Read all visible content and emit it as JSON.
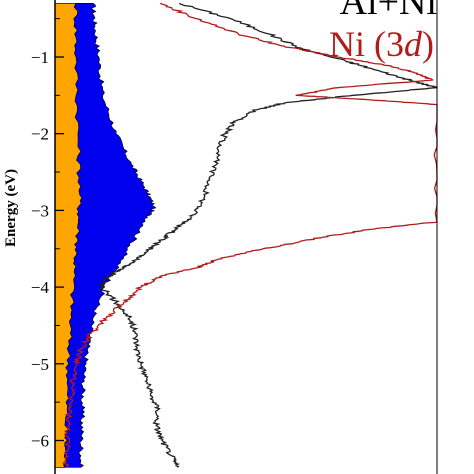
{
  "chart_data": {
    "type": "line",
    "title": "",
    "ylabel": "Energy (eV)",
    "xlabel": "",
    "ylim": [
      -6.35,
      -0.3
    ],
    "yticks": [
      -1,
      -2,
      -3,
      -4,
      -5,
      -6
    ],
    "ytick_labels": [
      "−1",
      "−2",
      "−3",
      "−4",
      "−5",
      "−6"
    ],
    "xlim": [
      0,
      10
    ],
    "grid": false,
    "legend": [
      {
        "text": "Al+Ni",
        "color": "#000000"
      },
      {
        "text": "Ni (3d)",
        "prefix": "Ni (3",
        "italic": "d",
        "suffix": ")",
        "color": "#b31b1b"
      }
    ],
    "series": [
      {
        "name": "Al+Ni",
        "style": "line",
        "color": "#222222",
        "points": [
          [
            -0.3,
            3.25
          ],
          [
            -0.5,
            4.6
          ],
          [
            -0.7,
            5.6
          ],
          [
            -0.9,
            6.5
          ],
          [
            -1.05,
            7.6
          ],
          [
            -1.2,
            8.6
          ],
          [
            -1.32,
            9.4
          ],
          [
            -1.4,
            10
          ],
          [
            -1.5,
            7.8
          ],
          [
            -1.6,
            6.0
          ],
          [
            -1.7,
            5.2
          ],
          [
            -1.85,
            4.7
          ],
          [
            -2.0,
            4.45
          ],
          [
            -2.3,
            4.25
          ],
          [
            -2.6,
            4.05
          ],
          [
            -2.9,
            3.85
          ],
          [
            -3.1,
            3.55
          ],
          [
            -3.25,
            3.15
          ],
          [
            -3.4,
            2.75
          ],
          [
            -3.55,
            2.35
          ],
          [
            -3.7,
            1.95
          ],
          [
            -3.8,
            1.6
          ],
          [
            -3.9,
            1.3
          ],
          [
            -4.0,
            1.25
          ],
          [
            -4.2,
            1.6
          ],
          [
            -4.4,
            1.95
          ],
          [
            -4.6,
            2.1
          ],
          [
            -4.8,
            2.15
          ],
          [
            -5.0,
            2.25
          ],
          [
            -5.2,
            2.4
          ],
          [
            -5.4,
            2.5
          ],
          [
            -5.6,
            2.7
          ],
          [
            -5.8,
            2.65
          ],
          [
            -6.0,
            2.8
          ],
          [
            -6.2,
            3.05
          ],
          [
            -6.35,
            3.2
          ]
        ]
      },
      {
        "name": "Ni (3d)",
        "style": "line",
        "color": "#b31b1b",
        "points": [
          [
            -0.3,
            2.75
          ],
          [
            -0.5,
            3.7
          ],
          [
            -0.7,
            4.8
          ],
          [
            -0.85,
            5.9
          ],
          [
            -1.0,
            7.4
          ],
          [
            -1.1,
            8.6
          ],
          [
            -1.2,
            9.4
          ],
          [
            -1.3,
            9.9
          ],
          [
            -1.4,
            7.4
          ],
          [
            -1.5,
            6.3
          ],
          [
            -1.55,
            8.0
          ],
          [
            -1.62,
            10
          ],
          [
            -3.15,
            10
          ],
          [
            -3.25,
            8.2
          ],
          [
            -3.35,
            7.0
          ],
          [
            -3.45,
            6.0
          ],
          [
            -3.55,
            5.0
          ],
          [
            -3.65,
            4.2
          ],
          [
            -3.75,
            3.7
          ],
          [
            -3.85,
            2.8
          ],
          [
            -4.0,
            2.25
          ],
          [
            -4.2,
            1.8
          ],
          [
            -4.4,
            1.35
          ],
          [
            -4.6,
            0.95
          ],
          [
            -4.8,
            0.7
          ],
          [
            -5.0,
            0.55
          ],
          [
            -5.3,
            0.45
          ],
          [
            -5.6,
            0.38
          ],
          [
            -5.9,
            0.32
          ],
          [
            -6.2,
            0.3
          ],
          [
            -6.35,
            0.3
          ]
        ]
      },
      {
        "name": "Al",
        "style": "fill",
        "color": "#ffa500",
        "points": [
          [
            -0.3,
            0.55
          ],
          [
            -1.0,
            0.55
          ],
          [
            -2.0,
            0.6
          ],
          [
            -2.8,
            0.65
          ],
          [
            -3.3,
            0.6
          ],
          [
            -3.8,
            0.5
          ],
          [
            -4.5,
            0.4
          ],
          [
            -5.2,
            0.33
          ],
          [
            -5.9,
            0.28
          ],
          [
            -6.35,
            0.26
          ]
        ]
      },
      {
        "name": "Ni",
        "style": "fill",
        "color": "#0000ee",
        "points": [
          [
            -0.3,
            1.0
          ],
          [
            -0.6,
            1.05
          ],
          [
            -1.0,
            1.15
          ],
          [
            -1.5,
            1.25
          ],
          [
            -2.0,
            1.6
          ],
          [
            -2.4,
            2.0
          ],
          [
            -2.7,
            2.35
          ],
          [
            -2.95,
            2.6
          ],
          [
            -3.2,
            2.3
          ],
          [
            -3.6,
            1.8
          ],
          [
            -4.0,
            1.3
          ],
          [
            -4.4,
            1.0
          ],
          [
            -4.8,
            0.85
          ],
          [
            -5.2,
            0.75
          ],
          [
            -5.6,
            0.72
          ],
          [
            -6.0,
            0.7
          ],
          [
            -6.35,
            0.68
          ]
        ]
      }
    ]
  }
}
